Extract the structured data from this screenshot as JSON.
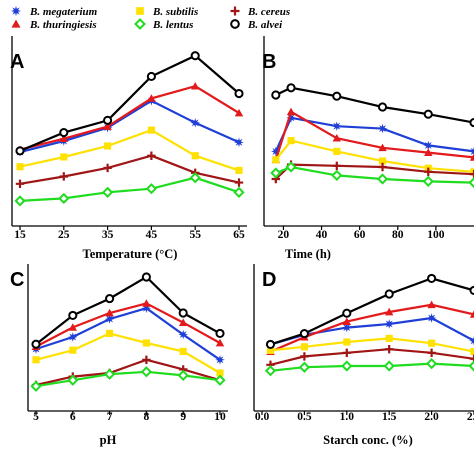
{
  "chart_data": [
    {
      "panel": "A",
      "type": "line",
      "xlabel": "Temperature (°C)",
      "x": [
        15,
        25,
        35,
        45,
        55,
        65
      ],
      "xticks": [
        "15",
        "25",
        "35",
        "45",
        "55",
        "65"
      ],
      "xlim": [
        15,
        65
      ],
      "ylim": [
        0,
        100
      ],
      "series": [
        {
          "name": "B. megaterium",
          "values": [
            36,
            45,
            56,
            78,
            60,
            44
          ]
        },
        {
          "name": "B. thuringiesis",
          "values": [
            38,
            47,
            57,
            80,
            90,
            68
          ]
        },
        {
          "name": "B. subtilis",
          "values": [
            24,
            32,
            41,
            54,
            33,
            21
          ]
        },
        {
          "name": "B. cereus",
          "values": [
            10,
            16,
            23,
            33,
            19,
            11
          ]
        },
        {
          "name": "B. lentus",
          "values": [
            -4,
            -2,
            3,
            6,
            15,
            3
          ]
        },
        {
          "name": "B. alvei",
          "values": [
            37,
            52,
            62,
            98,
            115,
            84
          ]
        }
      ]
    },
    {
      "panel": "B",
      "type": "line",
      "xlabel": "Time (h)",
      "x": [
        16,
        24,
        48,
        72,
        96,
        120
      ],
      "xticks": [
        "20",
        "40",
        "60",
        "80",
        "100"
      ],
      "xtick_values": [
        20,
        40,
        60,
        80,
        100
      ],
      "xlim": [
        14,
        120
      ],
      "ylim": [
        0,
        100
      ],
      "series": [
        {
          "name": "B. megaterium",
          "values": [
            38,
            66,
            59,
            57,
            43,
            38
          ]
        },
        {
          "name": "B. thuringiesis",
          "values": [
            31,
            71,
            49,
            41,
            37,
            33
          ]
        },
        {
          "name": "B. subtilis",
          "values": [
            31,
            47,
            38,
            30,
            24,
            21
          ]
        },
        {
          "name": "B. cereus",
          "values": [
            15,
            27,
            26,
            25,
            21,
            19
          ]
        },
        {
          "name": "B. lentus",
          "values": [
            20,
            25,
            18,
            15,
            13,
            12
          ]
        },
        {
          "name": "B. alvei",
          "values": [
            85,
            91,
            84,
            75,
            69,
            62
          ]
        }
      ]
    },
    {
      "panel": "C",
      "type": "line",
      "xlabel": "pH",
      "x": [
        5,
        6,
        7,
        8,
        9,
        10
      ],
      "xticks": [
        "5",
        "6",
        "7",
        "8",
        "9",
        "10"
      ],
      "xlim": [
        5,
        10
      ],
      "ylim": [
        0,
        100
      ],
      "series": [
        {
          "name": "B. megaterium",
          "values": [
            40,
            50,
            65,
            74,
            52,
            31
          ]
        },
        {
          "name": "B. thuringiesis",
          "values": [
            42,
            58,
            70,
            78,
            62,
            45
          ]
        },
        {
          "name": "B. subtilis",
          "values": [
            31,
            39,
            53,
            45,
            38,
            20
          ]
        },
        {
          "name": "B. cereus",
          "values": [
            10,
            17,
            20,
            31,
            23,
            14
          ]
        },
        {
          "name": "B. lentus",
          "values": [
            9,
            14,
            19,
            21,
            18,
            14
          ]
        },
        {
          "name": "B. alvei",
          "values": [
            44,
            68,
            82,
            100,
            70,
            53
          ]
        }
      ]
    },
    {
      "panel": "D",
      "type": "line",
      "xlabel": "Starch conc. (%)",
      "x": [
        0.1,
        0.5,
        1.0,
        1.5,
        2.0,
        2.5
      ],
      "xticks": [
        "0.0",
        "0.5",
        "1.0",
        "1.5",
        "2.0",
        "2.5"
      ],
      "xtick_values": [
        0,
        0.5,
        1.0,
        1.5,
        2.0,
        2.5
      ],
      "xlim": [
        0,
        2.5
      ],
      "ylim": [
        0,
        100
      ],
      "series": [
        {
          "name": "B. megaterium",
          "values": [
            43,
            51,
            57,
            60,
            65,
            46
          ]
        },
        {
          "name": "B. thuringiesis",
          "values": [
            37,
            49,
            62,
            70,
            76,
            68
          ]
        },
        {
          "name": "B. subtilis",
          "values": [
            38,
            41,
            45,
            48,
            44,
            37
          ]
        },
        {
          "name": "B. cereus",
          "values": [
            26,
            33,
            36,
            39,
            36,
            31
          ]
        },
        {
          "name": "B. lentus",
          "values": [
            21,
            24,
            25,
            25,
            27,
            25
          ]
        },
        {
          "name": "B. alvei",
          "values": [
            43,
            52,
            69,
            85,
            98,
            88
          ]
        }
      ]
    }
  ],
  "legend": [
    {
      "name": "B. megaterium",
      "color": "#1f3fd6",
      "marker": "star-icon"
    },
    {
      "name": "B. thuringiesis",
      "color": "#e31a1c",
      "marker": "triangle-icon"
    },
    {
      "name": "B. subtilis",
      "color": "#ffe100",
      "marker": "square-icon"
    },
    {
      "name": "B. lentus",
      "color": "#1fdc1f",
      "marker": "diamond-icon"
    },
    {
      "name": "B. cereus",
      "color": "#a01515",
      "marker": "plus-icon"
    },
    {
      "name": "B. alvei",
      "color": "#000000",
      "marker": "circle-icon"
    }
  ]
}
